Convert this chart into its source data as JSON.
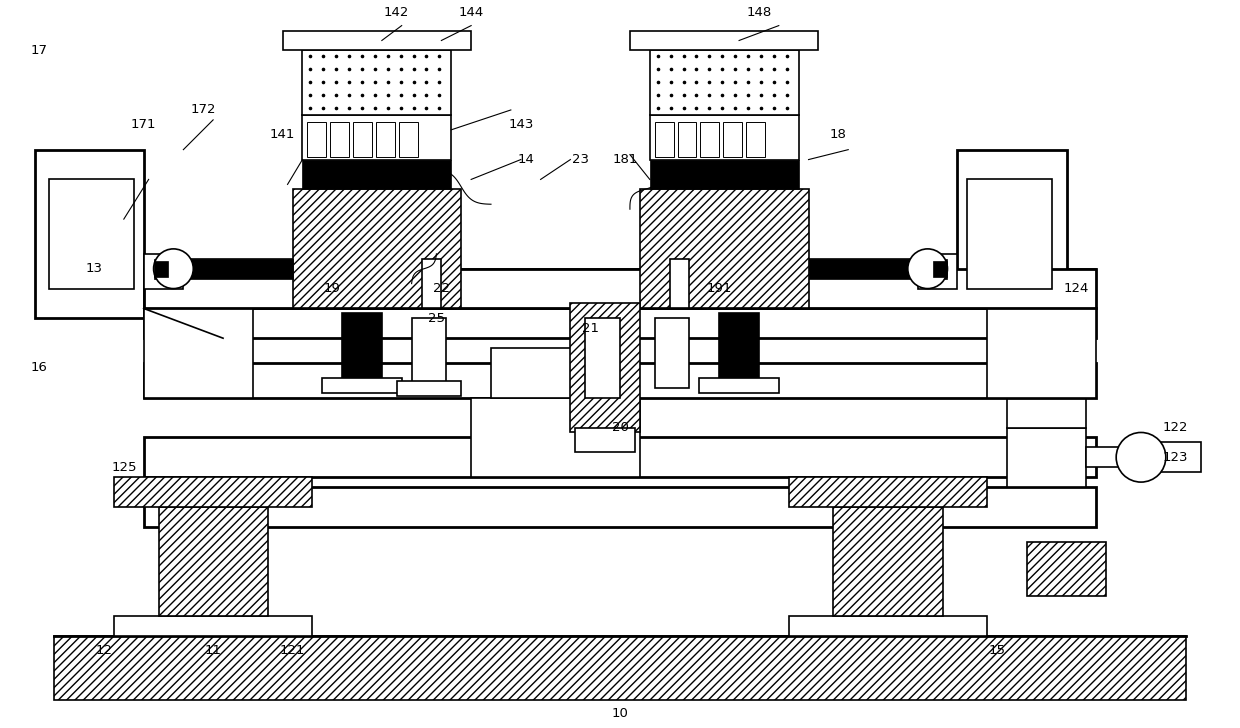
{
  "bg_color": "#ffffff",
  "fig_width": 12.4,
  "fig_height": 7.28,
  "dpi": 100
}
